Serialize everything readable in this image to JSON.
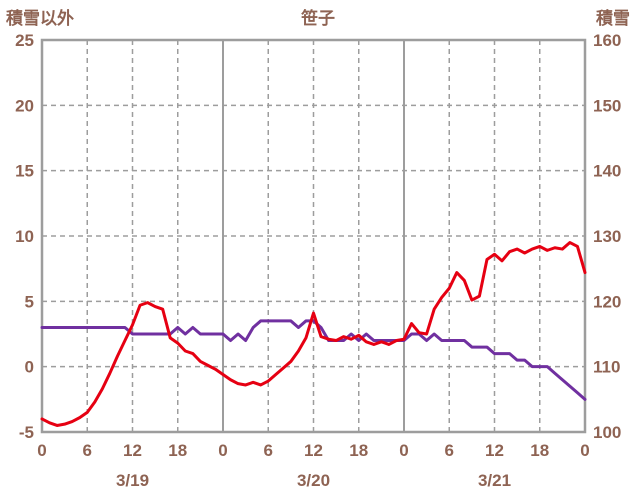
{
  "header": {
    "left_axis_title": "積雪以外",
    "station_name": "笹子",
    "right_axis_title": "積雪"
  },
  "colors": {
    "label_text": "#8e6353",
    "grid": "#9d9d9d",
    "frame": "#9d9d9d",
    "background": "#ffffff",
    "red_series": "#e60012",
    "purple_series": "#7030a0"
  },
  "chart_data": {
    "type": "line",
    "title": "笹子",
    "left_axis": {
      "title": "積雪以外",
      "min": -5,
      "max": 25,
      "ticks": [
        25,
        20,
        15,
        10,
        5,
        0,
        -5
      ]
    },
    "right_axis": {
      "title": "積雪",
      "min": 100,
      "max": 160,
      "ticks": [
        160,
        150,
        140,
        130,
        120,
        110,
        100
      ]
    },
    "x_axis": {
      "min_hour": 0,
      "max_hour": 72,
      "tick_hours": [
        0,
        6,
        12,
        18,
        24,
        30,
        36,
        42,
        48,
        54,
        60,
        66,
        72
      ],
      "tick_labels": [
        "0",
        "6",
        "12",
        "18",
        "0",
        "6",
        "12",
        "18",
        "0",
        "6",
        "12",
        "18",
        "0"
      ],
      "solid_grid_hours": [
        24,
        48
      ],
      "date_labels": [
        {
          "label": "3/19",
          "center_hour": 12
        },
        {
          "label": "3/20",
          "center_hour": 36
        },
        {
          "label": "3/21",
          "center_hour": 60
        }
      ]
    },
    "grid": {
      "horizontal_dashed": true,
      "vertical_dashed_every_6h": true
    },
    "series": [
      {
        "name": "積雪",
        "axis": "right",
        "color": "#7030a0",
        "values": [
          116,
          116,
          116,
          116,
          116,
          116,
          116,
          116,
          116,
          116,
          116,
          116,
          115,
          115,
          115,
          115,
          115,
          115,
          116,
          115,
          116,
          115,
          115,
          115,
          115,
          114,
          115,
          114,
          116,
          117,
          117,
          117,
          117,
          117,
          116,
          117,
          117,
          116,
          114,
          114,
          114,
          115,
          114,
          115,
          114,
          114,
          114,
          114,
          114,
          115,
          115,
          114,
          115,
          114,
          114,
          114,
          114,
          113,
          113,
          113,
          112,
          112,
          112,
          111,
          111,
          110,
          110,
          110,
          109,
          108,
          107,
          106,
          105
        ]
      },
      {
        "name": "積雪以外",
        "axis": "left",
        "color": "#e60012",
        "values": [
          -4.0,
          -4.3,
          -4.5,
          -4.4,
          -4.2,
          -3.9,
          -3.5,
          -2.7,
          -1.7,
          -0.5,
          0.8,
          2.0,
          3.2,
          4.7,
          4.9,
          4.6,
          4.4,
          2.2,
          1.8,
          1.2,
          1.0,
          0.4,
          0.1,
          -0.2,
          -0.6,
          -1.0,
          -1.3,
          -1.4,
          -1.2,
          -1.4,
          -1.1,
          -0.6,
          -0.1,
          0.4,
          1.2,
          2.2,
          4.1,
          2.3,
          2.1,
          2.0,
          2.3,
          2.1,
          2.4,
          1.9,
          1.7,
          1.9,
          1.7,
          2.0,
          2.1,
          3.3,
          2.6,
          2.5,
          4.4,
          5.3,
          6.0,
          7.2,
          6.6,
          5.1,
          5.4,
          8.2,
          8.6,
          8.1,
          8.8,
          9.0,
          8.7,
          9.0,
          9.2,
          8.9,
          9.1,
          9.0,
          9.5,
          9.2,
          7.2
        ]
      }
    ]
  }
}
